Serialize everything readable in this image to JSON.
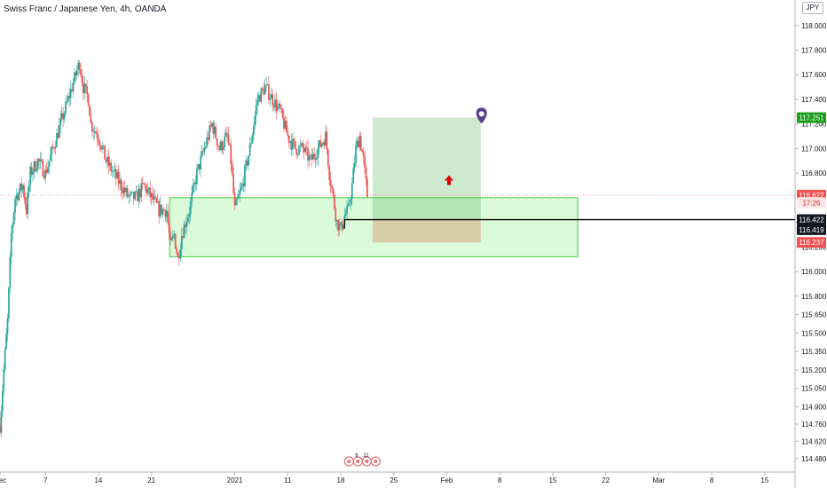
{
  "header": {
    "title": "Swiss Franc / Japanese Yen, 4h, OANDA",
    "currency": "JPY"
  },
  "colors": {
    "up": "#26a69a",
    "down": "#ef5350",
    "zone_fill": "rgba(140,240,140,0.32)",
    "zone_border": "#40d040",
    "target_fill": "rgba(80,180,80,0.28)",
    "stop_fill": "rgba(215,130,90,0.38)",
    "pin": "#5b3f8f",
    "arrow": "#e00000",
    "axis_text": "#131722"
  },
  "chart_data": {
    "type": "candlestick",
    "symbol": "CHFJPY",
    "timeframe": "4h",
    "ylim": [
      114.37,
      118.15
    ],
    "yticks": [
      118.0,
      117.8,
      117.6,
      117.4,
      117.2,
      117.0,
      116.8,
      116.6,
      116.4,
      116.2,
      116.0,
      115.8,
      115.65,
      115.5,
      115.35,
      115.2,
      115.05,
      114.9,
      114.76,
      114.62,
      114.48
    ],
    "ytick_labels": [
      "118.000",
      "117.800",
      "117.600",
      "117.400",
      "117.200",
      "117.000",
      "116.800",
      "116.600",
      "116.400",
      "116.200",
      "116.000",
      "115.800",
      "115.650",
      "115.500",
      "115.350",
      "115.200",
      "115.050",
      "114.900",
      "114.760",
      "114.620",
      "114.480"
    ],
    "xlim_days": [
      0,
      105
    ],
    "xticks": [
      {
        "day": 0,
        "label": "Dec"
      },
      {
        "day": 6,
        "label": "7"
      },
      {
        "day": 13,
        "label": "14"
      },
      {
        "day": 20,
        "label": "21"
      },
      {
        "day": 31,
        "label": "2021"
      },
      {
        "day": 38,
        "label": "11"
      },
      {
        "day": 45,
        "label": "18"
      },
      {
        "day": 52,
        "label": "25"
      },
      {
        "day": 59,
        "label": "Feb"
      },
      {
        "day": 66,
        "label": "8"
      },
      {
        "day": 73,
        "label": "15"
      },
      {
        "day": 80,
        "label": "22"
      },
      {
        "day": 87,
        "label": "Mar"
      },
      {
        "day": 94,
        "label": "8"
      },
      {
        "day": 101,
        "label": "15"
      }
    ],
    "path_days": [
      0,
      0.5,
      1,
      1.5,
      2,
      3,
      3.5,
      4,
      5,
      6,
      7,
      8,
      9,
      10,
      10.5,
      11,
      11.7,
      12,
      13,
      14,
      15,
      16,
      17,
      18,
      19,
      20,
      21,
      22,
      22.5,
      23,
      23.5,
      24,
      25,
      26,
      27,
      28,
      29,
      30,
      30.5,
      31,
      32,
      33,
      33.5,
      34,
      35,
      36,
      37,
      38,
      39,
      40,
      41,
      42,
      43,
      43.5,
      44,
      44.5,
      45,
      45.5,
      46,
      46.5,
      47,
      47.5,
      48,
      48.5
    ],
    "path_close": [
      114.75,
      115.2,
      115.6,
      116.3,
      116.6,
      116.7,
      116.5,
      116.8,
      116.9,
      116.8,
      117.0,
      117.2,
      117.4,
      117.6,
      117.7,
      117.5,
      117.4,
      117.2,
      117.1,
      116.9,
      116.8,
      116.7,
      116.6,
      116.6,
      116.7,
      116.6,
      116.5,
      116.5,
      116.2,
      116.3,
      116.1,
      116.3,
      116.5,
      116.8,
      117.0,
      117.2,
      117.0,
      117.1,
      116.9,
      116.5,
      116.7,
      117.0,
      117.2,
      117.4,
      117.5,
      117.4,
      117.3,
      117.1,
      117.0,
      117.0,
      116.9,
      117.0,
      117.1,
      116.8,
      116.6,
      116.4,
      116.35,
      116.45,
      116.5,
      116.7,
      117.0,
      117.1,
      116.9,
      116.62
    ],
    "annotations": {
      "demand_zone": {
        "day_start": 22.4,
        "day_end": 76.3,
        "top": 116.6,
        "bottom": 116.12
      },
      "long_position": {
        "day_start": 49.2,
        "day_end": 63.5,
        "entry": 116.43,
        "target": 117.251,
        "stop": 116.237
      },
      "horizontal_line": {
        "day_start": 45.5,
        "price": 116.422
      },
      "arrow_marker": {
        "day": 59.3,
        "price": 116.74
      },
      "pin_marker": {
        "day": 63.6,
        "price": 117.26
      }
    },
    "price_labels": [
      {
        "price": 117.251,
        "text": "117.251",
        "bg": "#1a9e1a",
        "fg": "#ffffff"
      },
      {
        "price": 116.622,
        "text": "116.622",
        "bg": "#ef5350",
        "fg": "#ffffff"
      },
      {
        "price": 116.56,
        "text": "17:26",
        "bg": "#ffe5e5",
        "fg": "#d32f2f"
      },
      {
        "price": 116.422,
        "text": "116.422",
        "bg": "#131722",
        "fg": "#ffffff"
      },
      {
        "price": 116.34,
        "text": "116.419",
        "bg": "#131722",
        "fg": "#ffffff"
      },
      {
        "price": 116.237,
        "text": "116.237",
        "bg": "#ef5350",
        "fg": "#ffffff"
      }
    ],
    "events_badge": {
      "day": 47.5,
      "label1": "6",
      "label2": "11"
    }
  }
}
